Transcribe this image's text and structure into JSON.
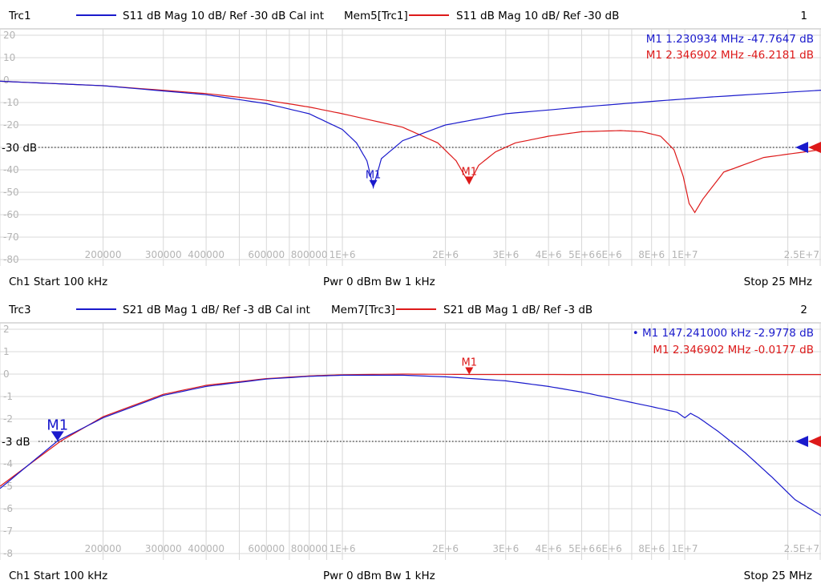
{
  "channels": [
    {
      "trace_name": "Trc1",
      "trace_desc": "S11  dB Mag  10 dB/ Ref -30 dB  Cal int",
      "mem_name": "Mem5[Trc1]",
      "mem_desc": "S11  dB Mag  10 dB/ Ref -30 dB",
      "window_number": "1",
      "ref_label": "-30 dB",
      "footer_start": "Ch1  Start  100 kHz",
      "footer_pwr": "Pwr  0 dBm  Bw  1 kHz",
      "footer_stop": "Stop  25 MHz",
      "marker_readouts": [
        {
          "text": "M1  1.230934  MHz  -47.7647 dB",
          "color": "#1a1acc"
        },
        {
          "text": "M1  2.346902  MHz  -46.2181  dB",
          "color": "#dd1a1a"
        }
      ],
      "marker_labels": [
        "M1",
        "M1"
      ]
    },
    {
      "trace_name": "Trc3",
      "trace_desc": "S21  dB Mag  1 dB/ Ref -3 dB  Cal int",
      "mem_name": "Mem7[Trc3]",
      "mem_desc": "S21  dB Mag  1 dB/ Ref -3 dB",
      "window_number": "2",
      "ref_label": "-3 dB",
      "footer_start": "Ch1  Start  100 kHz",
      "footer_pwr": "Pwr  0 dBm  Bw  1 kHz",
      "footer_stop": "Stop  25 MHz",
      "marker_readouts": [
        {
          "text": "• M1  147.241000  kHz  -2.9778  dB",
          "color": "#1a1acc"
        },
        {
          "text": "M1  2.346902  MHz  -0.0177  dB",
          "color": "#dd1a1a"
        }
      ],
      "marker_labels": [
        "M1",
        "M1"
      ]
    }
  ],
  "colors": {
    "trace": "#1a1acc",
    "memory": "#dd1a1a",
    "grid": "#d8d8d8",
    "tick": "#b4b4b4"
  },
  "chart_data": [
    {
      "type": "line",
      "title": "S11 dB Mag",
      "x_scale": "log",
      "xlim": [
        100000,
        25000000
      ],
      "ylim": [
        -80,
        20
      ],
      "y_ticks": [
        20,
        10,
        0,
        -10,
        -20,
        -30,
        -40,
        -50,
        -60,
        -70,
        -80
      ],
      "y_tick_labels": [
        "20",
        "10",
        "0",
        "-10",
        "-20",
        "-30 dB",
        "-40",
        "-50",
        "-60",
        "-70",
        "-80"
      ],
      "x_ticks": [
        200000,
        300000,
        400000,
        600000,
        800000,
        1000000,
        2000000,
        3000000,
        4000000,
        5000000,
        6000000,
        8000000,
        10000000,
        25000000
      ],
      "x_tick_labels": [
        "200000",
        "300000",
        "400000",
        "600000",
        "800000",
        "1E+6",
        "2E+6",
        "3E+6",
        "4E+6",
        "5E+6",
        "6E+6",
        "8E+6",
        "1E+7",
        "2.5E+7"
      ],
      "reference_level": -30,
      "series": [
        {
          "name": "Trc1",
          "color": "#1a1acc",
          "x": [
            100000,
            200000,
            400000,
            600000,
            800000,
            1000000,
            1100000,
            1180000,
            1230934,
            1300000,
            1500000,
            2000000,
            3000000,
            5000000,
            8000000,
            12000000,
            25000000
          ],
          "y": [
            -0.5,
            -2.5,
            -6.5,
            -10.5,
            -15,
            -22,
            -28,
            -36,
            -47.8,
            -35,
            -27,
            -20,
            -15,
            -12,
            -9.5,
            -7.5,
            -4.5
          ]
        },
        {
          "name": "Mem5[Trc1]",
          "color": "#dd1a1a",
          "x": [
            100000,
            200000,
            400000,
            600000,
            800000,
            1000000,
            1500000,
            1900000,
            2150000,
            2346902,
            2500000,
            2800000,
            3200000,
            4000000,
            5000000,
            6500000,
            7500000,
            8500000,
            9300000,
            9900000,
            10300000,
            10700000,
            11300000,
            13000000,
            17000000,
            25000000
          ],
          "y": [
            -0.5,
            -2.5,
            -6,
            -9,
            -12,
            -15,
            -21,
            -28,
            -36,
            -46.2,
            -38,
            -32,
            -28,
            -25,
            -23,
            -22.5,
            -23,
            -25,
            -31,
            -43,
            -55,
            -59,
            -53,
            -41,
            -34.5,
            -31
          ]
        }
      ],
      "markers": [
        {
          "series": "Trc1",
          "label": "M1",
          "x": 1230934,
          "y": -47.7647
        },
        {
          "series": "Mem5[Trc1]",
          "label": "M1",
          "x": 2346902,
          "y": -46.2181
        }
      ]
    },
    {
      "type": "line",
      "title": "S21 dB Mag",
      "x_scale": "log",
      "xlim": [
        100000,
        25000000
      ],
      "ylim": [
        -8,
        2
      ],
      "y_ticks": [
        2,
        1,
        0,
        -1,
        -2,
        -3,
        -4,
        -5,
        -6,
        -7,
        -8
      ],
      "y_tick_labels": [
        "2",
        "1",
        "0",
        "-1",
        "-2",
        "-3 dB",
        "-4",
        "-5",
        "-6",
        "-7",
        "-8"
      ],
      "x_ticks": [
        200000,
        300000,
        400000,
        600000,
        800000,
        1000000,
        2000000,
        3000000,
        4000000,
        5000000,
        6000000,
        8000000,
        10000000,
        25000000
      ],
      "x_tick_labels": [
        "200000",
        "300000",
        "400000",
        "600000",
        "800000",
        "1E+6",
        "2E+6",
        "3E+6",
        "4E+6",
        "5E+6",
        "6E+6",
        "8E+6",
        "1E+7",
        "2.5E+7"
      ],
      "reference_level": -3,
      "series": [
        {
          "name": "Trc3",
          "color": "#1a1acc",
          "x": [
            100000,
            147241,
            200000,
            300000,
            400000,
            600000,
            800000,
            1000000,
            1500000,
            2000000,
            3000000,
            4000000,
            5000000,
            6000000,
            8000000,
            9500000,
            10000000,
            10400000,
            11000000,
            12500000,
            15000000,
            18000000,
            21000000,
            25000000
          ],
          "y": [
            -5.1,
            -2.98,
            -1.95,
            -0.95,
            -0.55,
            -0.22,
            -0.1,
            -0.05,
            -0.05,
            -0.12,
            -0.3,
            -0.55,
            -0.8,
            -1.05,
            -1.45,
            -1.7,
            -1.95,
            -1.75,
            -1.95,
            -2.55,
            -3.5,
            -4.6,
            -5.6,
            -6.3
          ]
        },
        {
          "name": "Mem7[Trc3]",
          "color": "#dd1a1a",
          "x": [
            100000,
            150000,
            200000,
            300000,
            400000,
            600000,
            800000,
            1000000,
            1500000,
            2000000,
            2346902,
            5000000,
            10000000,
            25000000
          ],
          "y": [
            -5.0,
            -3.0,
            -1.9,
            -0.9,
            -0.5,
            -0.2,
            -0.08,
            -0.03,
            0.0,
            -0.01,
            -0.0177,
            -0.02,
            -0.02,
            -0.02
          ]
        }
      ],
      "markers": [
        {
          "series": "Trc3",
          "label": "M1",
          "x": 147241,
          "y": -2.9778
        },
        {
          "series": "Mem7[Trc3]",
          "label": "M1",
          "x": 2346902,
          "y": -0.0177
        }
      ]
    }
  ]
}
